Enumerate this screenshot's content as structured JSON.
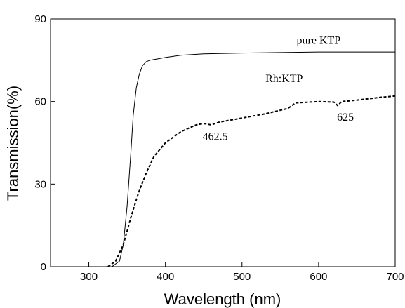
{
  "chart_data": {
    "type": "line",
    "title": "",
    "xlabel": "Wavelength (nm)",
    "ylabel": "Transmission(%)",
    "xlim": [
      250,
      700
    ],
    "ylim": [
      0,
      90
    ],
    "xticks": [
      300,
      400,
      500,
      600,
      700
    ],
    "yticks": [
      0,
      30,
      60,
      90
    ],
    "grid": false,
    "legend": "none",
    "series": [
      {
        "name": "pure KTP",
        "style": "solid",
        "color": "#000000",
        "x": [
          330,
          340,
          345,
          350,
          355,
          358,
          362,
          366,
          370,
          375,
          380,
          390,
          400,
          420,
          450,
          500,
          550,
          600,
          650,
          700
        ],
        "y": [
          0,
          2,
          8,
          22,
          42,
          55,
          65,
          70,
          73,
          74.5,
          75,
          75.5,
          76,
          76.8,
          77.3,
          77.6,
          77.8,
          78,
          78,
          78
        ]
      },
      {
        "name": "Rh:KTP",
        "style": "dashed",
        "color": "#000000",
        "x": [
          325,
          335,
          345,
          355,
          365,
          375,
          385,
          400,
          420,
          440,
          450,
          460,
          470,
          500,
          530,
          560,
          570,
          600,
          620,
          625,
          630,
          650,
          680,
          700
        ],
        "y": [
          0,
          2,
          8,
          18,
          27,
          34,
          40,
          45,
          49,
          51.5,
          52,
          51.5,
          52.5,
          54,
          55.5,
          57.5,
          59.5,
          60,
          59.8,
          58.5,
          60,
          60.5,
          61.5,
          62
        ]
      }
    ],
    "annotations": [
      {
        "text": "pure KTP",
        "x": 600,
        "y": 81
      },
      {
        "text": "Rh:KTP",
        "x": 555,
        "y": 67
      },
      {
        "text": "462.5",
        "x": 465,
        "y": 46
      },
      {
        "text": "625",
        "x": 635,
        "y": 53
      }
    ]
  }
}
